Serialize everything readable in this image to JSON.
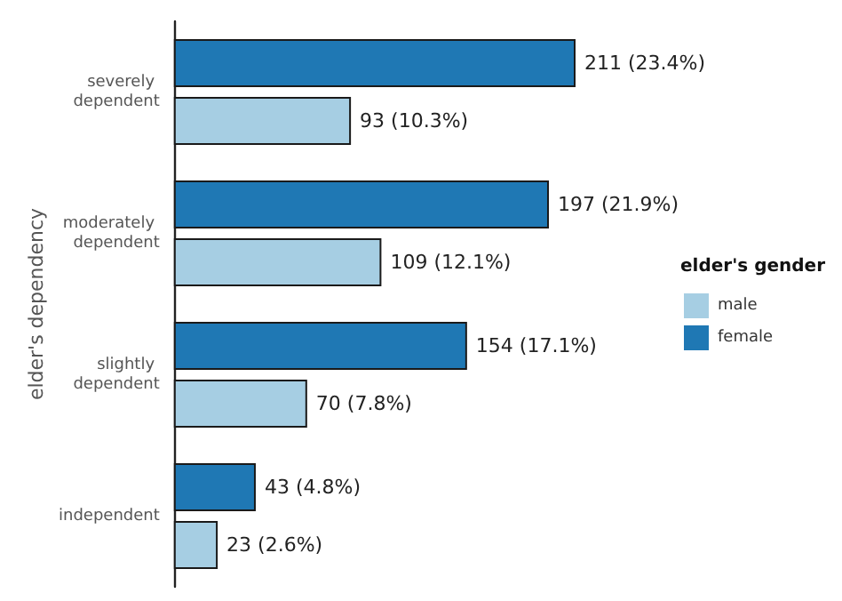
{
  "chart_data": {
    "type": "bar",
    "orientation": "horizontal",
    "ylabel": "elder's dependency",
    "legend_title": "elder's gender",
    "legend": "right",
    "categories": [
      "severely dependent",
      "moderately dependent",
      "slightly dependent",
      "independent"
    ],
    "series": [
      {
        "name": "male",
        "color": "#a6cee3",
        "values": [
          93,
          109,
          70,
          23
        ],
        "value_labels": [
          "93 (10.3%)",
          "109 (12.1%)",
          "70 (7.8%)",
          "23 (2.6%)"
        ]
      },
      {
        "name": "female",
        "color": "#1f78b4",
        "values": [
          211,
          197,
          154,
          43
        ],
        "value_labels": [
          "211 (23.4%)",
          "197 (21.9%)",
          "154 (17.1%)",
          "43 (4.8%)"
        ]
      }
    ]
  }
}
